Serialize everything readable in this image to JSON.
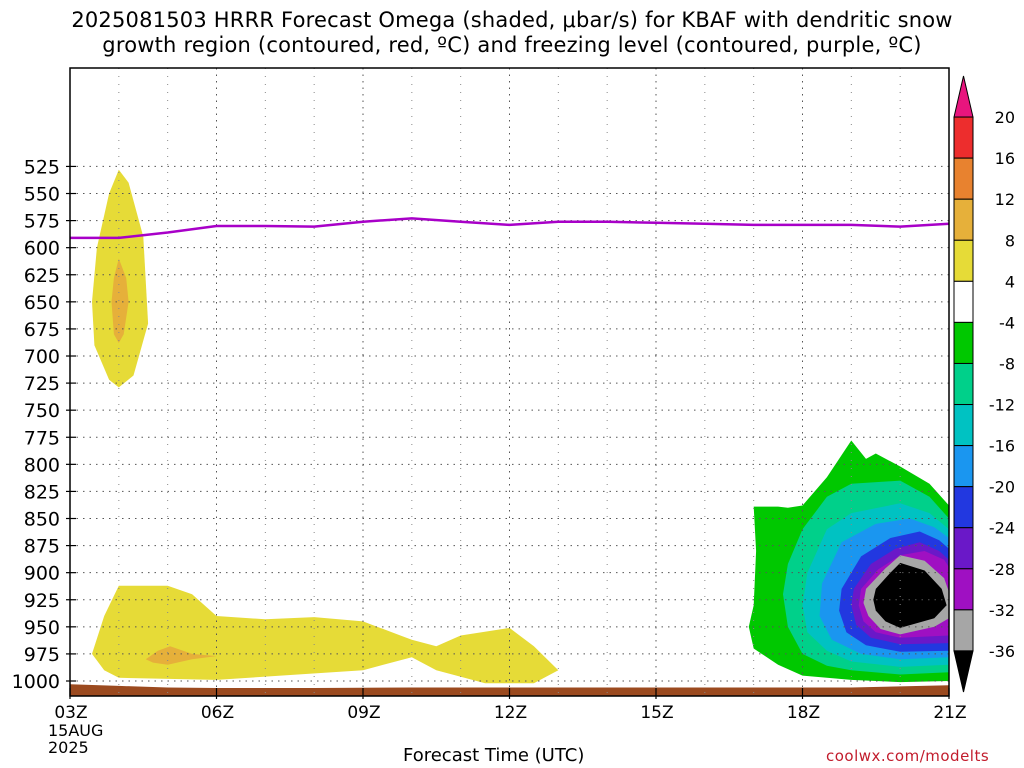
{
  "title_line1": "2025081503 HRRR Forecast Omega (shaded, μbar/s) for KBAF with dendritic snow",
  "title_line2": "growth region (contoured, red, ºC) and freezing level (contoured, purple, ºC)",
  "xlabel": "Forecast Time (UTC)",
  "credit": "coolwx.com/modelts",
  "date_label": [
    "15AUG",
    "2025"
  ],
  "chart_data": {
    "type": "heatmap",
    "title": "2025081503 HRRR Forecast Omega (shaded, μbar/s) for KBAF with dendritic snow growth region (contoured, red, ºC) and freezing level (contoured, purple, ºC)",
    "xlabel": "Forecast Time (UTC)",
    "ylabel": "",
    "x_unit": "forecast hour (UTC)",
    "x_range": [
      3,
      21
    ],
    "x_ticks": [
      {
        "hour": 3,
        "label": "03Z"
      },
      {
        "hour": 6,
        "label": "06Z"
      },
      {
        "hour": 9,
        "label": "09Z"
      },
      {
        "hour": 12,
        "label": "12Z"
      },
      {
        "hour": 15,
        "label": "15Z"
      },
      {
        "hour": 18,
        "label": "18Z"
      },
      {
        "hour": 21,
        "label": "21Z"
      }
    ],
    "y_unit": "hPa",
    "y_range": [
      1010,
      510
    ],
    "y_ticks": [
      525,
      550,
      575,
      600,
      625,
      650,
      675,
      700,
      725,
      750,
      775,
      800,
      825,
      850,
      875,
      900,
      925,
      950,
      975,
      1000
    ],
    "grid": true,
    "colorbar": {
      "placement": "right",
      "unit": "μbar/s",
      "labels": [
        "20",
        "16",
        "12",
        "8",
        "4",
        "-4",
        "-8",
        "-12",
        "-16",
        "-20",
        "-24",
        "-28",
        "-32",
        "-36"
      ],
      "bins": [
        {
          "range": ">20",
          "color": "#e8157e"
        },
        {
          "range": "16 to 20",
          "color": "#ed2d2d"
        },
        {
          "range": "12 to 16",
          "color": "#e8822f"
        },
        {
          "range": "8 to 12",
          "color": "#e6b03a"
        },
        {
          "range": "4 to 8",
          "color": "#e6db37"
        },
        {
          "range": "-4 to 4",
          "color": "#ffffff"
        },
        {
          "range": "-8 to -4",
          "color": "#00c800"
        },
        {
          "range": "-12 to -8",
          "color": "#00d08a"
        },
        {
          "range": "-16 to -12",
          "color": "#00c2c2"
        },
        {
          "range": "-20 to -16",
          "color": "#1a96f0"
        },
        {
          "range": "-24 to -20",
          "color": "#2238e0"
        },
        {
          "range": "-28 to -24",
          "color": "#6a18c8"
        },
        {
          "range": "-32 to -28",
          "color": "#9f10c2"
        },
        {
          "range": "-36 to -32",
          "color": "#a6a6a6"
        },
        {
          "range": "<-36",
          "color": "#000000"
        }
      ]
    },
    "freezing_level": {
      "color": "#a800c8",
      "points": [
        [
          3,
          591
        ],
        [
          4,
          591
        ],
        [
          5,
          586
        ],
        [
          6,
          580
        ],
        [
          7,
          580
        ],
        [
          8,
          580.5
        ],
        [
          9,
          576
        ],
        [
          10,
          573
        ],
        [
          11,
          576
        ],
        [
          12,
          579
        ],
        [
          13,
          576
        ],
        [
          14,
          576
        ],
        [
          15,
          577
        ],
        [
          16,
          578
        ],
        [
          17,
          579
        ],
        [
          18,
          579
        ],
        [
          19,
          579
        ],
        [
          20,
          580.5
        ],
        [
          21,
          578
        ]
      ]
    },
    "omega_regions": [
      {
        "level_color": "#e6db37",
        "points": [
          [
            4.0,
            528
          ],
          [
            4.2,
            540
          ],
          [
            4.5,
            590
          ],
          [
            4.6,
            670
          ],
          [
            4.3,
            718
          ],
          [
            4.0,
            729
          ],
          [
            3.8,
            722
          ],
          [
            3.5,
            690
          ],
          [
            3.45,
            650
          ],
          [
            3.55,
            600
          ],
          [
            3.8,
            550
          ]
        ]
      },
      {
        "level_color": "#e6b03a",
        "points": [
          [
            4.0,
            610
          ],
          [
            4.15,
            628
          ],
          [
            4.2,
            650
          ],
          [
            4.1,
            680
          ],
          [
            4.0,
            688
          ],
          [
            3.9,
            680
          ],
          [
            3.85,
            650
          ],
          [
            3.9,
            628
          ]
        ]
      },
      {
        "level_color": "#e6db37",
        "points": [
          [
            3.45,
            975
          ],
          [
            3.7,
            940
          ],
          [
            4.0,
            912
          ],
          [
            5.0,
            912
          ],
          [
            5.5,
            920
          ],
          [
            6.0,
            940
          ],
          [
            7.0,
            943
          ],
          [
            8.0,
            941
          ],
          [
            9.0,
            945
          ],
          [
            10.0,
            962
          ],
          [
            10.5,
            968
          ],
          [
            11.0,
            958
          ],
          [
            12.0,
            951
          ],
          [
            12.5,
            968
          ],
          [
            13.0,
            990
          ],
          [
            12.5,
            1002
          ],
          [
            11.5,
            1002
          ],
          [
            10.5,
            990
          ],
          [
            10.0,
            978
          ],
          [
            9.0,
            990
          ],
          [
            6.0,
            999
          ],
          [
            4.0,
            997
          ],
          [
            3.7,
            990
          ]
        ]
      },
      {
        "level_color": "#e6b03a",
        "points": [
          [
            4.55,
            980
          ],
          [
            4.8,
            972
          ],
          [
            5.05,
            968
          ],
          [
            5.5,
            975
          ],
          [
            6.0,
            977
          ],
          [
            5.5,
            980
          ],
          [
            5.0,
            985
          ],
          [
            4.7,
            983
          ]
        ]
      },
      {
        "level_color": "#00c800",
        "points": [
          [
            17.0,
            839
          ],
          [
            17.5,
            839
          ],
          [
            17.7,
            840
          ],
          [
            18.0,
            838
          ],
          [
            18.5,
            812
          ],
          [
            19.0,
            778
          ],
          [
            19.3,
            795
          ],
          [
            19.5,
            790
          ],
          [
            20.0,
            802
          ],
          [
            20.6,
            818
          ],
          [
            21.0,
            838
          ],
          [
            21.0,
            1000
          ],
          [
            20.0,
            1001
          ],
          [
            19.0,
            999
          ],
          [
            18.0,
            995
          ],
          [
            17.5,
            985
          ],
          [
            17.0,
            970
          ],
          [
            16.9,
            950
          ],
          [
            17.0,
            930
          ],
          [
            17.05,
            880
          ]
        ]
      },
      {
        "level_color": "#00d08a",
        "points": [
          [
            17.7,
            892
          ],
          [
            18.0,
            860
          ],
          [
            18.5,
            830
          ],
          [
            19.0,
            818
          ],
          [
            20.0,
            815
          ],
          [
            20.6,
            830
          ],
          [
            21.0,
            850
          ],
          [
            21.0,
            992
          ],
          [
            20.0,
            994
          ],
          [
            19.0,
            990
          ],
          [
            18.5,
            986
          ],
          [
            18.0,
            975
          ],
          [
            17.7,
            950
          ],
          [
            17.6,
            920
          ]
        ]
      },
      {
        "level_color": "#00c2c2",
        "points": [
          [
            18.1,
            900
          ],
          [
            18.5,
            860
          ],
          [
            19.0,
            845
          ],
          [
            20.0,
            836
          ],
          [
            20.6,
            845
          ],
          [
            21.0,
            860
          ],
          [
            21.0,
            985
          ],
          [
            20.0,
            987
          ],
          [
            19.0,
            982
          ],
          [
            18.5,
            972
          ],
          [
            18.1,
            955
          ],
          [
            18.0,
            930
          ]
        ]
      },
      {
        "level_color": "#1a96f0",
        "points": [
          [
            18.4,
            910
          ],
          [
            18.8,
            872
          ],
          [
            19.5,
            855
          ],
          [
            20.2,
            850
          ],
          [
            20.7,
            858
          ],
          [
            21.0,
            868
          ],
          [
            21.0,
            978
          ],
          [
            20.0,
            980
          ],
          [
            19.2,
            975
          ],
          [
            18.6,
            962
          ],
          [
            18.35,
            940
          ]
        ]
      },
      {
        "level_color": "#2238e0",
        "points": [
          [
            18.8,
            915
          ],
          [
            19.2,
            885
          ],
          [
            19.8,
            868
          ],
          [
            20.4,
            862
          ],
          [
            20.8,
            870
          ],
          [
            21.0,
            878
          ],
          [
            21.0,
            972
          ],
          [
            20.0,
            973
          ],
          [
            19.3,
            967
          ],
          [
            18.9,
            955
          ],
          [
            18.75,
            935
          ]
        ]
      },
      {
        "level_color": "#6a18c8",
        "points": [
          [
            19.05,
            915
          ],
          [
            19.4,
            892
          ],
          [
            19.9,
            878
          ],
          [
            20.4,
            872
          ],
          [
            20.8,
            880
          ],
          [
            21.0,
            888
          ],
          [
            21.0,
            965
          ],
          [
            20.0,
            966
          ],
          [
            19.4,
            960
          ],
          [
            19.1,
            948
          ],
          [
            19.0,
            930
          ]
        ]
      },
      {
        "level_color": "#9f10c2",
        "points": [
          [
            19.2,
            915
          ],
          [
            19.55,
            897
          ],
          [
            20.0,
            884
          ],
          [
            20.5,
            880
          ],
          [
            20.9,
            888
          ],
          [
            21.0,
            895
          ],
          [
            21.0,
            958
          ],
          [
            20.0,
            960
          ],
          [
            19.5,
            955
          ],
          [
            19.25,
            945
          ],
          [
            19.15,
            930
          ]
        ]
      },
      {
        "level_color": "#a6a6a6",
        "points": [
          [
            19.3,
            915
          ],
          [
            19.7,
            896
          ],
          [
            20.0,
            884
          ],
          [
            20.5,
            889
          ],
          [
            20.9,
            905
          ],
          [
            21.0,
            918
          ],
          [
            21.0,
            942
          ],
          [
            20.7,
            950
          ],
          [
            20.0,
            957
          ],
          [
            19.6,
            952
          ],
          [
            19.35,
            940
          ],
          [
            19.25,
            928
          ]
        ]
      },
      {
        "level_color": "#000000",
        "points": [
          [
            19.5,
            915
          ],
          [
            19.8,
            900
          ],
          [
            20.0,
            891
          ],
          [
            20.5,
            898
          ],
          [
            20.85,
            915
          ],
          [
            20.95,
            930
          ],
          [
            20.7,
            942
          ],
          [
            20.0,
            951
          ],
          [
            19.7,
            945
          ],
          [
            19.5,
            935
          ],
          [
            19.45,
            925
          ]
        ]
      }
    ],
    "terrain": {
      "color": "#9b4a1f",
      "points": [
        [
          3,
          1003
        ],
        [
          4,
          1004.5
        ],
        [
          5,
          1006
        ],
        [
          6,
          1006.5
        ],
        [
          8,
          1006.5
        ],
        [
          10,
          1006
        ],
        [
          12,
          1006
        ],
        [
          14,
          1006
        ],
        [
          16,
          1006
        ],
        [
          18,
          1006
        ],
        [
          19,
          1006
        ],
        [
          20,
          1005
        ],
        [
          21,
          1004
        ]
      ]
    }
  }
}
